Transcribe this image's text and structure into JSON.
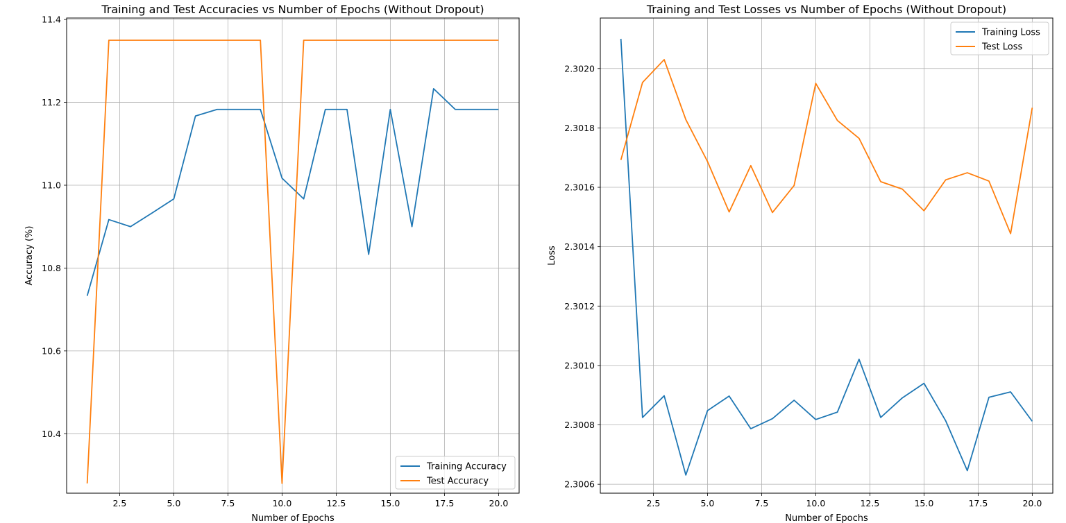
{
  "figure": {
    "background": "#ffffff",
    "grid_color": "#b0b0b0",
    "colors": {
      "training": "#1f77b4",
      "test": "#ff7f0e"
    }
  },
  "chart_data": [
    {
      "type": "line",
      "title": "Training and Test Accuracies vs Number of Epochs (Without Dropout)",
      "xlabel": "Number of Epochs",
      "ylabel": "Accuracy (%)",
      "xlim": [
        0.05,
        20.95
      ],
      "ylim": [
        10.2565,
        11.4036
      ],
      "xticks": [
        2.5,
        5.0,
        7.5,
        10.0,
        12.5,
        15.0,
        17.5,
        20.0
      ],
      "xtick_labels": [
        "2.5",
        "5.0",
        "7.5",
        "10.0",
        "12.5",
        "15.0",
        "17.5",
        "20.0"
      ],
      "yticks": [
        10.4,
        10.6,
        10.8,
        11.0,
        11.2,
        11.4
      ],
      "ytick_labels": [
        "10.4",
        "10.6",
        "10.8",
        "11.0",
        "11.2",
        "11.4"
      ],
      "grid": true,
      "legend_position": "lower-right",
      "x": [
        1,
        2,
        3,
        4,
        5,
        6,
        7,
        8,
        9,
        10,
        11,
        12,
        13,
        14,
        15,
        16,
        17,
        18,
        19,
        20
      ],
      "series": [
        {
          "name": "Training Accuracy",
          "color": "#1f77b4",
          "values": [
            10.733,
            10.917,
            10.9,
            10.933,
            10.967,
            11.167,
            11.183,
            11.183,
            11.183,
            11.017,
            10.967,
            11.183,
            11.183,
            10.833,
            11.183,
            10.9,
            11.233,
            11.183,
            11.183,
            11.183
          ]
        },
        {
          "name": "Test Accuracy",
          "color": "#ff7f0e",
          "values": [
            10.28,
            11.35,
            11.35,
            11.35,
            11.35,
            11.35,
            11.35,
            11.35,
            11.35,
            10.28,
            11.35,
            11.35,
            11.35,
            11.35,
            11.35,
            11.35,
            11.35,
            11.35,
            11.35,
            11.35
          ]
        }
      ]
    },
    {
      "type": "line",
      "title": "Training and Test Losses vs Number of Epochs (Without Dropout)",
      "xlabel": "Number of Epochs",
      "ylabel": "Loss",
      "xlim": [
        0.05,
        20.95
      ],
      "ylim": [
        2.30057,
        2.30217
      ],
      "xticks": [
        2.5,
        5.0,
        7.5,
        10.0,
        12.5,
        15.0,
        17.5,
        20.0
      ],
      "xtick_labels": [
        "2.5",
        "5.0",
        "7.5",
        "10.0",
        "12.5",
        "15.0",
        "17.5",
        "20.0"
      ],
      "yticks": [
        2.3006,
        2.3008,
        2.301,
        2.3012,
        2.3014,
        2.3016,
        2.3018,
        2.302
      ],
      "ytick_labels": [
        "2.3006",
        "2.3008",
        "2.3010",
        "2.3012",
        "2.3014",
        "2.3016",
        "2.3018",
        "2.3020"
      ],
      "grid": true,
      "legend_position": "upper-right",
      "x": [
        1,
        2,
        3,
        4,
        5,
        6,
        7,
        8,
        9,
        10,
        11,
        12,
        13,
        14,
        15,
        16,
        17,
        18,
        19,
        20
      ],
      "series": [
        {
          "name": "Training Loss",
          "color": "#1f77b4",
          "values": [
            2.3021,
            2.300825,
            2.300898,
            2.300631,
            2.300848,
            2.300897,
            2.300787,
            2.300821,
            2.300883,
            2.300818,
            2.300843,
            2.301021,
            2.300825,
            2.300891,
            2.30094,
            2.300814,
            2.300646,
            2.300893,
            2.300911,
            2.300812
          ]
        },
        {
          "name": "Test Loss",
          "color": "#ff7f0e",
          "values": [
            2.301692,
            2.301953,
            2.30203,
            2.301828,
            2.301687,
            2.301517,
            2.301673,
            2.301515,
            2.301606,
            2.30195,
            2.301825,
            2.301765,
            2.301619,
            2.301594,
            2.301521,
            2.301625,
            2.301649,
            2.301621,
            2.301444,
            2.301868
          ]
        }
      ]
    }
  ]
}
